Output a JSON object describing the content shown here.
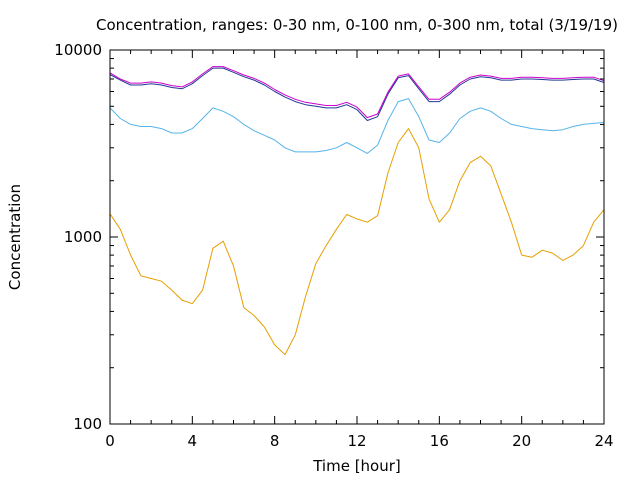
{
  "chart_data": {
    "type": "line",
    "title": "Concentration, ranges: 0-30 nm, 0-100 nm, 0-300 nm, total (3/19/19)",
    "xlabel": "Time [hour]",
    "ylabel": "Concentration",
    "xlim": [
      0,
      24
    ],
    "ylim": [
      100,
      10000
    ],
    "yscale": "log",
    "grid": false,
    "legend": "none",
    "x_ticks": [
      0,
      4,
      8,
      12,
      16,
      20,
      24
    ],
    "x_tick_labels": [
      "0",
      "4",
      "8",
      "12",
      "16",
      "20",
      "24"
    ],
    "y_ticks": [
      100,
      1000,
      10000
    ],
    "y_tick_labels": [
      "100",
      "1000",
      "10000"
    ],
    "x": [
      0,
      0.5,
      1,
      1.5,
      2,
      2.5,
      3,
      3.5,
      4,
      4.5,
      5,
      5.5,
      6,
      6.5,
      7,
      7.5,
      8,
      8.5,
      9,
      9.5,
      10,
      10.5,
      11,
      11.5,
      12,
      12.5,
      13,
      13.5,
      14,
      14.5,
      15,
      15.5,
      16,
      16.5,
      17,
      17.5,
      18,
      18.5,
      19,
      19.5,
      20,
      20.5,
      21,
      21.5,
      22,
      22.5,
      23,
      23.5,
      24
    ],
    "series": [
      {
        "color": "#e69f00",
        "values": [
          1330,
          1100,
          800,
          620,
          600,
          580,
          520,
          460,
          440,
          520,
          870,
          950,
          700,
          420,
          380,
          330,
          265,
          235,
          300,
          480,
          720,
          900,
          1100,
          1320,
          1250,
          1200,
          1300,
          2200,
          3200,
          3800,
          3000,
          1600,
          1200,
          1400,
          2000,
          2500,
          2700,
          2400,
          1700,
          1200,
          800,
          780,
          850,
          820,
          750,
          800,
          900,
          1200,
          1400
        ]
      },
      {
        "color": "#56b4e9",
        "values": [
          4900,
          4300,
          4000,
          3900,
          3900,
          3800,
          3600,
          3600,
          3800,
          4300,
          4900,
          4700,
          4400,
          4000,
          3700,
          3500,
          3300,
          3000,
          2850,
          2850,
          2850,
          2900,
          3000,
          3200,
          3000,
          2800,
          3100,
          4200,
          5300,
          5500,
          4400,
          3300,
          3200,
          3600,
          4300,
          4700,
          4900,
          4700,
          4300,
          4000,
          3900,
          3800,
          3750,
          3700,
          3750,
          3900,
          4000,
          4050,
          4100
        ]
      },
      {
        "color": "#1f3a93",
        "values": [
          7400,
          6900,
          6500,
          6500,
          6600,
          6500,
          6300,
          6200,
          6600,
          7300,
          8000,
          8000,
          7600,
          7200,
          6900,
          6500,
          6000,
          5600,
          5300,
          5100,
          5000,
          4900,
          4900,
          5100,
          4800,
          4200,
          4400,
          5800,
          7100,
          7300,
          6200,
          5300,
          5300,
          5800,
          6500,
          7000,
          7200,
          7100,
          6900,
          6900,
          7000,
          7000,
          6950,
          6900,
          6900,
          6950,
          7000,
          7000,
          6700
        ]
      },
      {
        "color": "#cc00cc",
        "values": [
          7550,
          7000,
          6650,
          6650,
          6750,
          6650,
          6450,
          6350,
          6750,
          7450,
          8150,
          8150,
          7750,
          7350,
          7050,
          6650,
          6150,
          5750,
          5450,
          5250,
          5150,
          5050,
          5050,
          5250,
          4950,
          4350,
          4550,
          5950,
          7250,
          7450,
          6350,
          5450,
          5450,
          5950,
          6650,
          7150,
          7350,
          7250,
          7050,
          7050,
          7150,
          7150,
          7100,
          7050,
          7050,
          7100,
          7150,
          7150,
          6850
        ]
      }
    ]
  }
}
